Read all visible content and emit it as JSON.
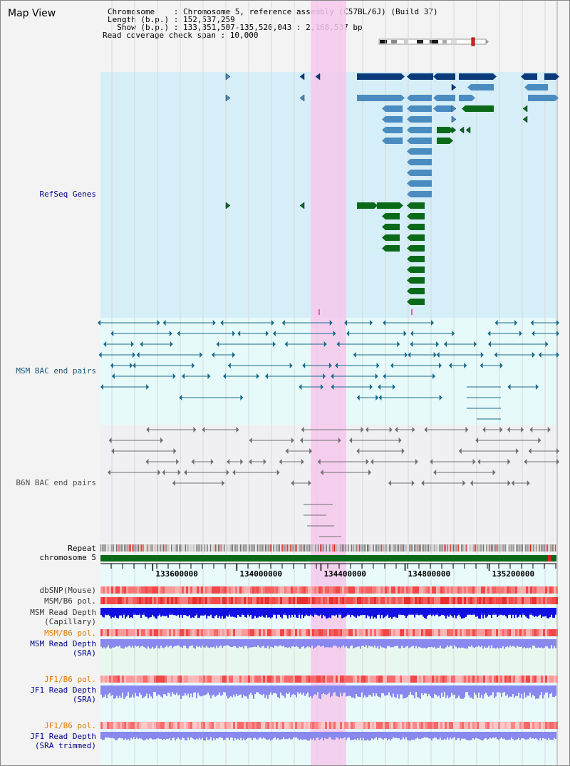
{
  "page": {
    "title": "Map View"
  },
  "info": {
    "chromosome_line": "Chromosome    : Chromosome 5, reference assembly (C57BL/6J) (Build 37)",
    "length_line": "Length (b.p.) : 152,537,259",
    "show_line": "  Show (b.p.) : 133,351,507-135,520,043 : 2,168,537 bp",
    "coverage_line": "Read coverage check span : 10,000"
  },
  "tracks": {
    "refseq": "RefSeq Genes",
    "msm_bac": "MSM BAC end pairs",
    "b6n_bac": "B6N BAC end pairs",
    "repeat": "Repeat",
    "chromosome": "chromosome 5",
    "dbsnp": "dbSNP(Mouse)",
    "msm_b6_pol_1": "MSM/B6 pol.",
    "msm_read_depth_cap": "MSM Read Depth\n(Capillary)",
    "msm_b6_pol_2": "MSM/B6 pol.",
    "msm_read_depth_sra": "MSM Read Depth\n(SRA)",
    "jf1_b6_pol_1": "JF1/B6 pol.",
    "jf1_read_depth_sra": "JF1 Read Depth\n(SRA)",
    "jf1_b6_pol_2": "JF1/B6 pol.",
    "jf1_read_depth_trim": "JF1 Read Depth\n(SRA trimmed)"
  },
  "axis": {
    "ticks": [
      "133600000",
      "134000000",
      "134400000",
      "134800000",
      "135200000"
    ],
    "tick_values": [
      133600000,
      134000000,
      134400000,
      134800000,
      135200000
    ],
    "range": [
      133351507,
      135520043
    ]
  },
  "highlight": {
    "range": [
      134351507,
      134520043
    ]
  },
  "colors": {
    "refseq_bg": "#d6eef8",
    "bac_bg": "#e6fafa",
    "gene_dark": "#0b3a7a",
    "gene_mid": "#4a8cc0",
    "gene_green": "#0b6a1a",
    "msm_pair": "#1a6a8a",
    "b6n_pair": "#707070",
    "highlight": "#f6c8ec",
    "chrom": "#0b6a1a",
    "depth_dark": "#1010e0",
    "depth_light": "#8888ee",
    "label_blue": "#00008b",
    "label_orange": "#e07b00"
  }
}
